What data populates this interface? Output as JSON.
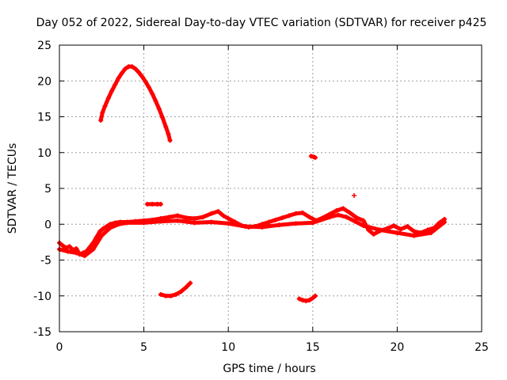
{
  "chart_data": {
    "type": "scatter",
    "title": "Day 052 of 2022, Sidereal Day-to-day VTEC variation (SDTVAR) for receiver p425",
    "xlabel": "GPS time / hours",
    "ylabel": "SDTVAR / TECUs",
    "xlim": [
      0,
      25
    ],
    "ylim": [
      -15,
      25
    ],
    "xticks": [
      0,
      5,
      10,
      15,
      20,
      25
    ],
    "yticks": [
      -15,
      -10,
      -5,
      0,
      5,
      10,
      15,
      20,
      25
    ],
    "grid": true,
    "legend": "none",
    "marker": "+",
    "series_color": "#ff0000",
    "series": [
      {
        "name": "arc-high-pass",
        "points": [
          [
            2.45,
            14.5
          ],
          [
            2.55,
            15.6
          ],
          [
            2.7,
            16.5
          ],
          [
            2.9,
            17.6
          ],
          [
            3.1,
            18.6
          ],
          [
            3.3,
            19.5
          ],
          [
            3.5,
            20.4
          ],
          [
            3.7,
            21.1
          ],
          [
            3.9,
            21.7
          ],
          [
            4.1,
            22.0
          ],
          [
            4.3,
            22.0
          ],
          [
            4.5,
            21.7
          ],
          [
            4.7,
            21.2
          ],
          [
            4.9,
            20.6
          ],
          [
            5.1,
            19.9
          ],
          [
            5.3,
            19.1
          ],
          [
            5.5,
            18.2
          ],
          [
            5.7,
            17.2
          ],
          [
            5.9,
            16.1
          ],
          [
            6.1,
            14.9
          ],
          [
            6.3,
            13.6
          ],
          [
            6.45,
            12.6
          ],
          [
            6.55,
            11.7
          ]
        ]
      },
      {
        "name": "main-band",
        "points": [
          [
            0,
            -2.6
          ],
          [
            0.2,
            -3.0
          ],
          [
            0.4,
            -3.3
          ],
          [
            0.6,
            -3.1
          ],
          [
            0.8,
            -3.6
          ],
          [
            1.0,
            -3.4
          ],
          [
            1.2,
            -4.2
          ],
          [
            1.4,
            -4.0
          ],
          [
            1.6,
            -3.8
          ],
          [
            1.8,
            -3.2
          ],
          [
            2.0,
            -2.6
          ],
          [
            2.2,
            -1.8
          ],
          [
            2.4,
            -1.0
          ],
          [
            2.6,
            -0.6
          ],
          [
            2.8,
            -0.3
          ],
          [
            3.0,
            0.0
          ],
          [
            3.3,
            0.2
          ],
          [
            3.6,
            0.3
          ],
          [
            4.0,
            0.3
          ],
          [
            4.5,
            0.4
          ],
          [
            5.0,
            0.5
          ],
          [
            5.5,
            0.6
          ],
          [
            6.0,
            0.8
          ],
          [
            6.5,
            1.0
          ],
          [
            7.0,
            1.2
          ],
          [
            7.5,
            0.9
          ],
          [
            8.0,
            0.8
          ],
          [
            8.5,
            1.0
          ],
          [
            9.0,
            1.5
          ],
          [
            9.4,
            1.8
          ],
          [
            9.7,
            1.2
          ],
          [
            10.0,
            0.8
          ],
          [
            10.4,
            0.3
          ],
          [
            10.8,
            -0.2
          ],
          [
            11.2,
            -0.4
          ],
          [
            11.6,
            -0.3
          ],
          [
            12.0,
            0.0
          ],
          [
            12.4,
            0.3
          ],
          [
            12.8,
            0.6
          ],
          [
            13.2,
            0.9
          ],
          [
            13.6,
            1.2
          ],
          [
            14.0,
            1.5
          ],
          [
            14.4,
            1.6
          ],
          [
            14.8,
            1.0
          ],
          [
            15.2,
            0.5
          ],
          [
            15.6,
            0.9
          ],
          [
            16.0,
            1.4
          ],
          [
            16.4,
            1.9
          ],
          [
            16.8,
            2.2
          ],
          [
            17.2,
            1.6
          ],
          [
            17.6,
            0.9
          ],
          [
            18.0,
            0.5
          ],
          [
            18.3,
            -0.8
          ],
          [
            18.6,
            -1.4
          ],
          [
            19.0,
            -0.9
          ],
          [
            19.4,
            -0.6
          ],
          [
            19.8,
            -0.2
          ],
          [
            20.2,
            -0.7
          ],
          [
            20.6,
            -0.3
          ],
          [
            21.0,
            -1.0
          ],
          [
            21.4,
            -1.2
          ],
          [
            21.8,
            -0.8
          ],
          [
            22.2,
            -0.5
          ],
          [
            22.5,
            0.2
          ],
          [
            22.8,
            0.7
          ]
        ]
      },
      {
        "name": "main-band-lower-trace",
        "points": [
          [
            0,
            -3.5
          ],
          [
            0.5,
            -3.8
          ],
          [
            1.0,
            -4.0
          ],
          [
            1.5,
            -4.4
          ],
          [
            2.0,
            -3.5
          ],
          [
            2.5,
            -1.6
          ],
          [
            3.0,
            -0.5
          ],
          [
            3.5,
            0.0
          ],
          [
            4.0,
            0.2
          ],
          [
            5.0,
            0.2
          ],
          [
            6.0,
            0.4
          ],
          [
            7.0,
            0.5
          ],
          [
            8.0,
            0.2
          ],
          [
            9.0,
            0.3
          ],
          [
            10.0,
            0.1
          ],
          [
            11.0,
            -0.3
          ],
          [
            12.0,
            -0.4
          ],
          [
            13.0,
            -0.1
          ],
          [
            14.0,
            0.1
          ],
          [
            15.0,
            0.2
          ],
          [
            16.0,
            1.0
          ],
          [
            16.5,
            1.3
          ],
          [
            17.0,
            1.0
          ],
          [
            17.5,
            0.4
          ],
          [
            18.0,
            -0.2
          ],
          [
            19.0,
            -0.8
          ],
          [
            20.0,
            -1.2
          ],
          [
            21.0,
            -1.6
          ],
          [
            22.0,
            -1.2
          ],
          [
            22.8,
            0.3
          ]
        ]
      },
      {
        "name": "arc-low-mid",
        "points": [
          [
            6.0,
            -9.8
          ],
          [
            6.3,
            -10.0
          ],
          [
            6.6,
            -10.0
          ],
          [
            6.9,
            -9.8
          ],
          [
            7.2,
            -9.4
          ],
          [
            7.5,
            -8.8
          ],
          [
            7.75,
            -8.2
          ]
        ]
      },
      {
        "name": "arc-low-late",
        "points": [
          [
            14.2,
            -10.4
          ],
          [
            14.4,
            -10.6
          ],
          [
            14.6,
            -10.7
          ],
          [
            14.8,
            -10.6
          ],
          [
            15.0,
            -10.3
          ],
          [
            15.15,
            -10.0
          ]
        ]
      },
      {
        "name": "cluster-3",
        "points": [
          [
            5.2,
            2.8
          ],
          [
            5.5,
            2.8
          ],
          [
            5.8,
            2.8
          ],
          [
            6.0,
            2.8
          ]
        ]
      },
      {
        "name": "cluster-9",
        "points": [
          [
            14.9,
            9.5
          ],
          [
            15.05,
            9.4
          ],
          [
            15.15,
            9.3
          ]
        ]
      },
      {
        "name": "cluster-4",
        "points": [
          [
            17.45,
            4.0
          ]
        ]
      }
    ]
  }
}
